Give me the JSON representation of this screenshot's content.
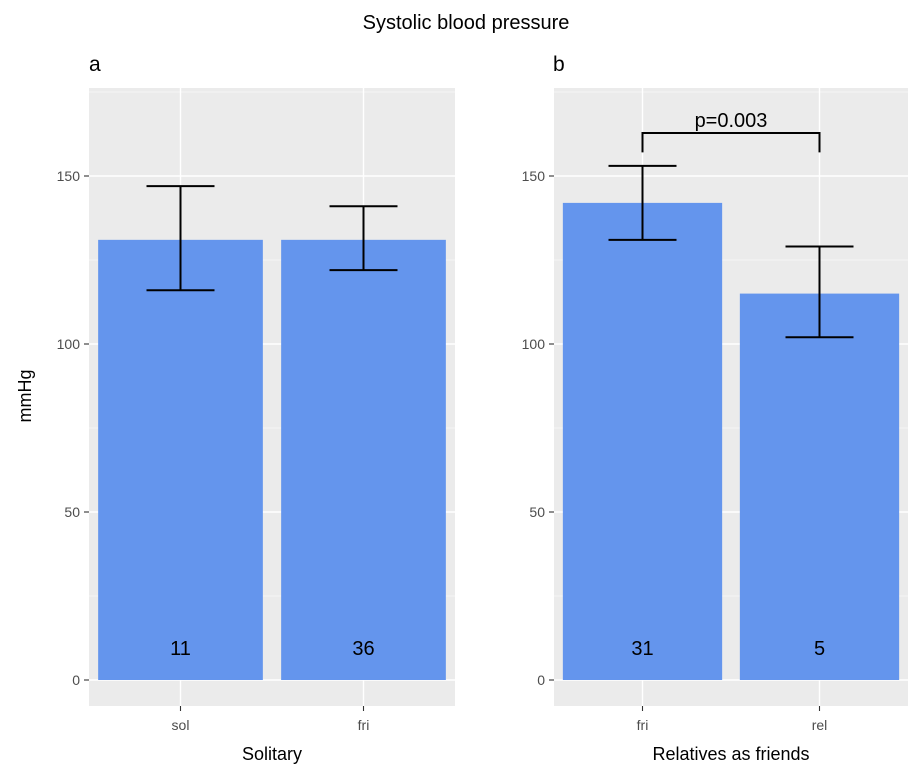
{
  "title": "Systolic blood pressure",
  "ylabel": "mmHg",
  "chart_data": [
    {
      "type": "bar",
      "panel_tag": "a",
      "xlabel": "Solitary",
      "ylabel": "mmHg",
      "ylim": [
        0,
        175
      ],
      "yticks": [
        0,
        50,
        100,
        150
      ],
      "ytick_labels": [
        "0",
        "50",
        "100",
        "150"
      ],
      "categories": [
        "sol",
        "fri"
      ],
      "values": [
        131,
        131
      ],
      "error_low": [
        116,
        122
      ],
      "error_high": [
        147,
        141
      ],
      "counts": [
        "11",
        "36"
      ],
      "grid": true
    },
    {
      "type": "bar",
      "panel_tag": "b",
      "xlabel": "Relatives as friends",
      "ylabel": "",
      "ylim": [
        0,
        175
      ],
      "yticks": [
        0,
        50,
        100,
        150
      ],
      "ytick_labels": [
        "0",
        "50",
        "100",
        "150"
      ],
      "categories": [
        "fri",
        "rel"
      ],
      "values": [
        142,
        115
      ],
      "error_low": [
        131,
        102
      ],
      "error_high": [
        153,
        129
      ],
      "counts": [
        "31",
        "5"
      ],
      "grid": true,
      "significance": {
        "label": "p=0.003",
        "between": [
          0,
          1
        ],
        "y": 163
      }
    }
  ],
  "colors": {
    "bar": "#6495ED",
    "panel": "#EBEBEB",
    "grid": "#FFFFFF"
  }
}
